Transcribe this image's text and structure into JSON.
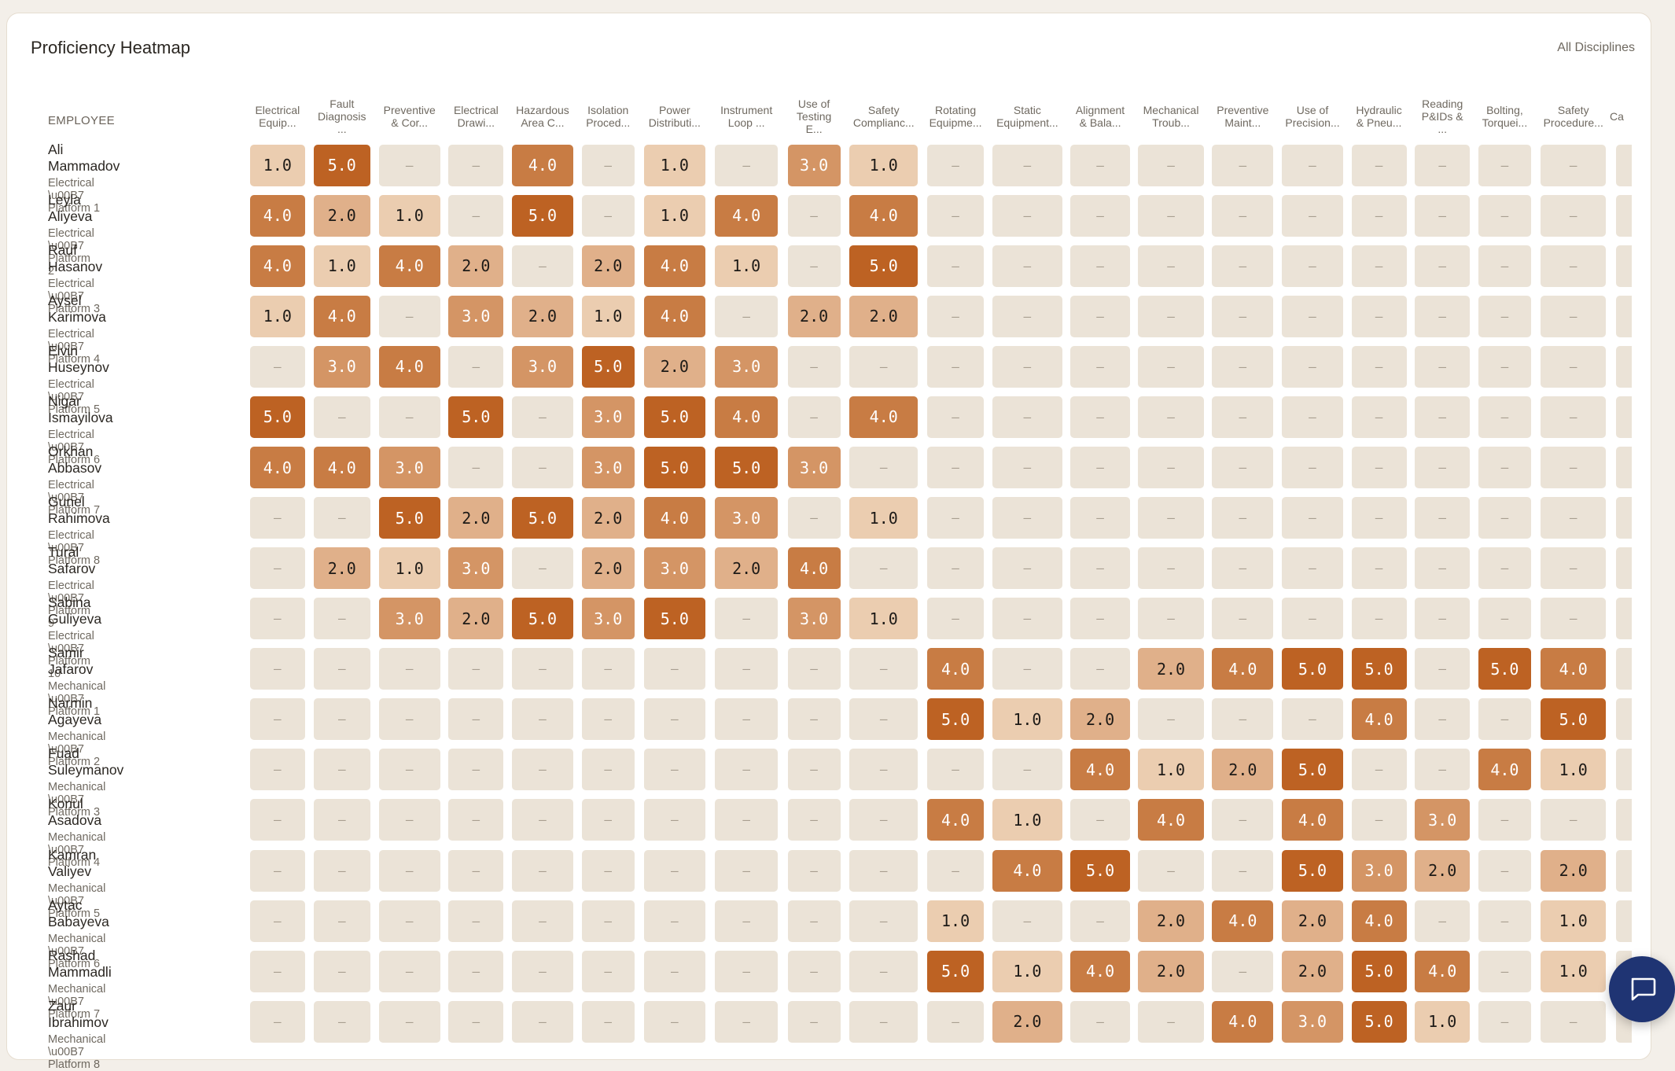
{
  "header": {
    "title": "Proficiency Heatmap",
    "filter_label": "All Disciplines"
  },
  "table": {
    "employee_header": "EMPLOYEE",
    "columns": [
      {
        "label": "Electrical Equip...",
        "l1": "Electrical",
        "l2": "Equip...",
        "l3": ""
      },
      {
        "label": "Fault Diagnosis ...",
        "l1": "Fault",
        "l2": "Diagnosis",
        "l3": "..."
      },
      {
        "label": "Preventive & Cor...",
        "l1": "Preventive",
        "l2": "& Cor...",
        "l3": ""
      },
      {
        "label": "Electrical Drawi...",
        "l1": "Electrical",
        "l2": "Drawi...",
        "l3": ""
      },
      {
        "label": "Hazardous Area C...",
        "l1": "Hazardous",
        "l2": "Area C...",
        "l3": ""
      },
      {
        "label": "Isolation Proced...",
        "l1": "Isolation",
        "l2": "Proced...",
        "l3": ""
      },
      {
        "label": "Power Distributi...",
        "l1": "Power",
        "l2": "Distributi...",
        "l3": ""
      },
      {
        "label": "Instrument Loop ...",
        "l1": "Instrument",
        "l2": "Loop ...",
        "l3": ""
      },
      {
        "label": "Use of Testing E...",
        "l1": "Use of",
        "l2": "Testing",
        "l3": "E..."
      },
      {
        "label": "Safety Complianc...",
        "l1": "Safety",
        "l2": "Complianc...",
        "l3": ""
      },
      {
        "label": "Rotating Equipme...",
        "l1": "Rotating",
        "l2": "Equipme...",
        "l3": ""
      },
      {
        "label": "Static Equipment...",
        "l1": "Static",
        "l2": "Equipment...",
        "l3": ""
      },
      {
        "label": "Alignment & Bala...",
        "l1": "Alignment",
        "l2": "& Bala...",
        "l3": ""
      },
      {
        "label": "Mechanical Troub...",
        "l1": "Mechanical",
        "l2": "Troub...",
        "l3": ""
      },
      {
        "label": "Preventive Maint...",
        "l1": "Preventive",
        "l2": "Maint...",
        "l3": ""
      },
      {
        "label": "Use of Precision...",
        "l1": "Use of",
        "l2": "Precision...",
        "l3": ""
      },
      {
        "label": "Hydraulic & Pneu...",
        "l1": "Hydraulic",
        "l2": "& Pneu...",
        "l3": ""
      },
      {
        "label": "Reading P&IDs & ...",
        "l1": "Reading",
        "l2": "P&IDs &",
        "l3": "..."
      },
      {
        "label": "Bolting, Torquei...",
        "l1": "Bolting,",
        "l2": "Torquei...",
        "l3": ""
      },
      {
        "label": "Safety Procedure...",
        "l1": "Safety",
        "l2": "Procedure...",
        "l3": ""
      },
      {
        "label": "Ca...",
        "l1": "Ca",
        "l2": "",
        "l3": ""
      }
    ],
    "rows": [
      {
        "name": "Ali Mammadov",
        "sub": "Electrical \\u00B7 Platform 1",
        "values": [
          "1.0",
          "5.0",
          "–",
          "–",
          "4.0",
          "–",
          "1.0",
          "–",
          "3.0",
          "1.0",
          "–",
          "–",
          "–",
          "–",
          "–",
          "–",
          "–",
          "–",
          "–",
          "–",
          "–"
        ]
      },
      {
        "name": "Leyla Aliyeva",
        "sub": "Electrical \\u00B7 Platform 2",
        "values": [
          "4.0",
          "2.0",
          "1.0",
          "–",
          "5.0",
          "–",
          "1.0",
          "4.0",
          "–",
          "4.0",
          "–",
          "–",
          "–",
          "–",
          "–",
          "–",
          "–",
          "–",
          "–",
          "–",
          "–"
        ]
      },
      {
        "name": "Rauf Hasanov",
        "sub": "Electrical \\u00B7 Platform 3",
        "values": [
          "4.0",
          "1.0",
          "4.0",
          "2.0",
          "–",
          "2.0",
          "4.0",
          "1.0",
          "–",
          "5.0",
          "–",
          "–",
          "–",
          "–",
          "–",
          "–",
          "–",
          "–",
          "–",
          "–",
          "–"
        ]
      },
      {
        "name": "Aysel Karimova",
        "sub": "Electrical \\u00B7 Platform 4",
        "values": [
          "1.0",
          "4.0",
          "–",
          "3.0",
          "2.0",
          "1.0",
          "4.0",
          "–",
          "2.0",
          "2.0",
          "–",
          "–",
          "–",
          "–",
          "–",
          "–",
          "–",
          "–",
          "–",
          "–",
          "–"
        ]
      },
      {
        "name": "Elvin Huseynov",
        "sub": "Electrical \\u00B7 Platform 5",
        "values": [
          "–",
          "3.0",
          "4.0",
          "–",
          "3.0",
          "5.0",
          "2.0",
          "3.0",
          "–",
          "–",
          "–",
          "–",
          "–",
          "–",
          "–",
          "–",
          "–",
          "–",
          "–",
          "–",
          "–"
        ]
      },
      {
        "name": "Nigar Ismayilova",
        "sub": "Electrical \\u00B7 Platform 6",
        "values": [
          "5.0",
          "–",
          "–",
          "5.0",
          "–",
          "3.0",
          "5.0",
          "4.0",
          "–",
          "4.0",
          "–",
          "–",
          "–",
          "–",
          "–",
          "–",
          "–",
          "–",
          "–",
          "–",
          "–"
        ]
      },
      {
        "name": "Orkhan Abbasov",
        "sub": "Electrical \\u00B7 Platform 7",
        "values": [
          "4.0",
          "4.0",
          "3.0",
          "–",
          "–",
          "3.0",
          "5.0",
          "5.0",
          "3.0",
          "–",
          "–",
          "–",
          "–",
          "–",
          "–",
          "–",
          "–",
          "–",
          "–",
          "–",
          "–"
        ]
      },
      {
        "name": "Gunel Rahimova",
        "sub": "Electrical \\u00B7 Platform 8",
        "values": [
          "–",
          "–",
          "5.0",
          "2.0",
          "5.0",
          "2.0",
          "4.0",
          "3.0",
          "–",
          "1.0",
          "–",
          "–",
          "–",
          "–",
          "–",
          "–",
          "–",
          "–",
          "–",
          "–",
          "–"
        ]
      },
      {
        "name": "Tural Safarov",
        "sub": "Electrical \\u00B7 Platform 9",
        "values": [
          "–",
          "2.0",
          "1.0",
          "3.0",
          "–",
          "2.0",
          "3.0",
          "2.0",
          "4.0",
          "–",
          "–",
          "–",
          "–",
          "–",
          "–",
          "–",
          "–",
          "–",
          "–",
          "–",
          "–"
        ]
      },
      {
        "name": "Sabina Guliyeva",
        "sub": "Electrical \\u00B7 Platform 10",
        "values": [
          "–",
          "–",
          "3.0",
          "2.0",
          "5.0",
          "3.0",
          "5.0",
          "–",
          "3.0",
          "1.0",
          "–",
          "–",
          "–",
          "–",
          "–",
          "–",
          "–",
          "–",
          "–",
          "–",
          "–"
        ]
      },
      {
        "name": "Samir Jafarov",
        "sub": "Mechanical \\u00B7 Platform 1",
        "values": [
          "–",
          "–",
          "–",
          "–",
          "–",
          "–",
          "–",
          "–",
          "–",
          "–",
          "4.0",
          "–",
          "–",
          "2.0",
          "4.0",
          "5.0",
          "5.0",
          "–",
          "5.0",
          "4.0",
          "–"
        ]
      },
      {
        "name": "Narmin Agayeva",
        "sub": "Mechanical \\u00B7 Platform 2",
        "values": [
          "–",
          "–",
          "–",
          "–",
          "–",
          "–",
          "–",
          "–",
          "–",
          "–",
          "5.0",
          "1.0",
          "2.0",
          "–",
          "–",
          "–",
          "4.0",
          "–",
          "–",
          "5.0",
          "–"
        ]
      },
      {
        "name": "Fuad Suleymanov",
        "sub": "Mechanical \\u00B7 Platform 3",
        "values": [
          "–",
          "–",
          "–",
          "–",
          "–",
          "–",
          "–",
          "–",
          "–",
          "–",
          "–",
          "–",
          "4.0",
          "1.0",
          "2.0",
          "5.0",
          "–",
          "–",
          "4.0",
          "1.0",
          "–"
        ]
      },
      {
        "name": "Konul Asadova",
        "sub": "Mechanical \\u00B7 Platform 4",
        "values": [
          "–",
          "–",
          "–",
          "–",
          "–",
          "–",
          "–",
          "–",
          "–",
          "–",
          "4.0",
          "1.0",
          "–",
          "4.0",
          "–",
          "4.0",
          "–",
          "3.0",
          "–",
          "–",
          "–"
        ]
      },
      {
        "name": "Kamran Valiyev",
        "sub": "Mechanical \\u00B7 Platform 5",
        "values": [
          "–",
          "–",
          "–",
          "–",
          "–",
          "–",
          "–",
          "–",
          "–",
          "–",
          "–",
          "4.0",
          "5.0",
          "–",
          "–",
          "5.0",
          "3.0",
          "2.0",
          "–",
          "2.0",
          "–"
        ]
      },
      {
        "name": "Aytac Babayeva",
        "sub": "Mechanical \\u00B7 Platform 6",
        "values": [
          "–",
          "–",
          "–",
          "–",
          "–",
          "–",
          "–",
          "–",
          "–",
          "–",
          "1.0",
          "–",
          "–",
          "2.0",
          "4.0",
          "2.0",
          "4.0",
          "–",
          "–",
          "1.0",
          "–"
        ]
      },
      {
        "name": "Rashad Mammadli",
        "sub": "Mechanical \\u00B7 Platform 7",
        "values": [
          "–",
          "–",
          "–",
          "–",
          "–",
          "–",
          "–",
          "–",
          "–",
          "–",
          "5.0",
          "1.0",
          "4.0",
          "2.0",
          "–",
          "2.0",
          "5.0",
          "4.0",
          "–",
          "1.0",
          "–"
        ]
      },
      {
        "name": "Zaur Ibrahimov",
        "sub": "Mechanical \\u00B7 Platform 8",
        "values": [
          "–",
          "–",
          "–",
          "–",
          "–",
          "–",
          "–",
          "–",
          "–",
          "–",
          "–",
          "2.0",
          "–",
          "–",
          "4.0",
          "3.0",
          "5.0",
          "1.0",
          "–",
          "–",
          "–"
        ]
      }
    ]
  },
  "colors": {
    "empty": "#ebe3d7",
    "level1": "#ebcdb0",
    "level2": "#e0b08a",
    "level3": "#d49565",
    "level4": "#c87c44",
    "level5": "#bd6223",
    "chat_button": "#1f3473"
  },
  "chat": {
    "icon": "chat-bubble-icon"
  }
}
